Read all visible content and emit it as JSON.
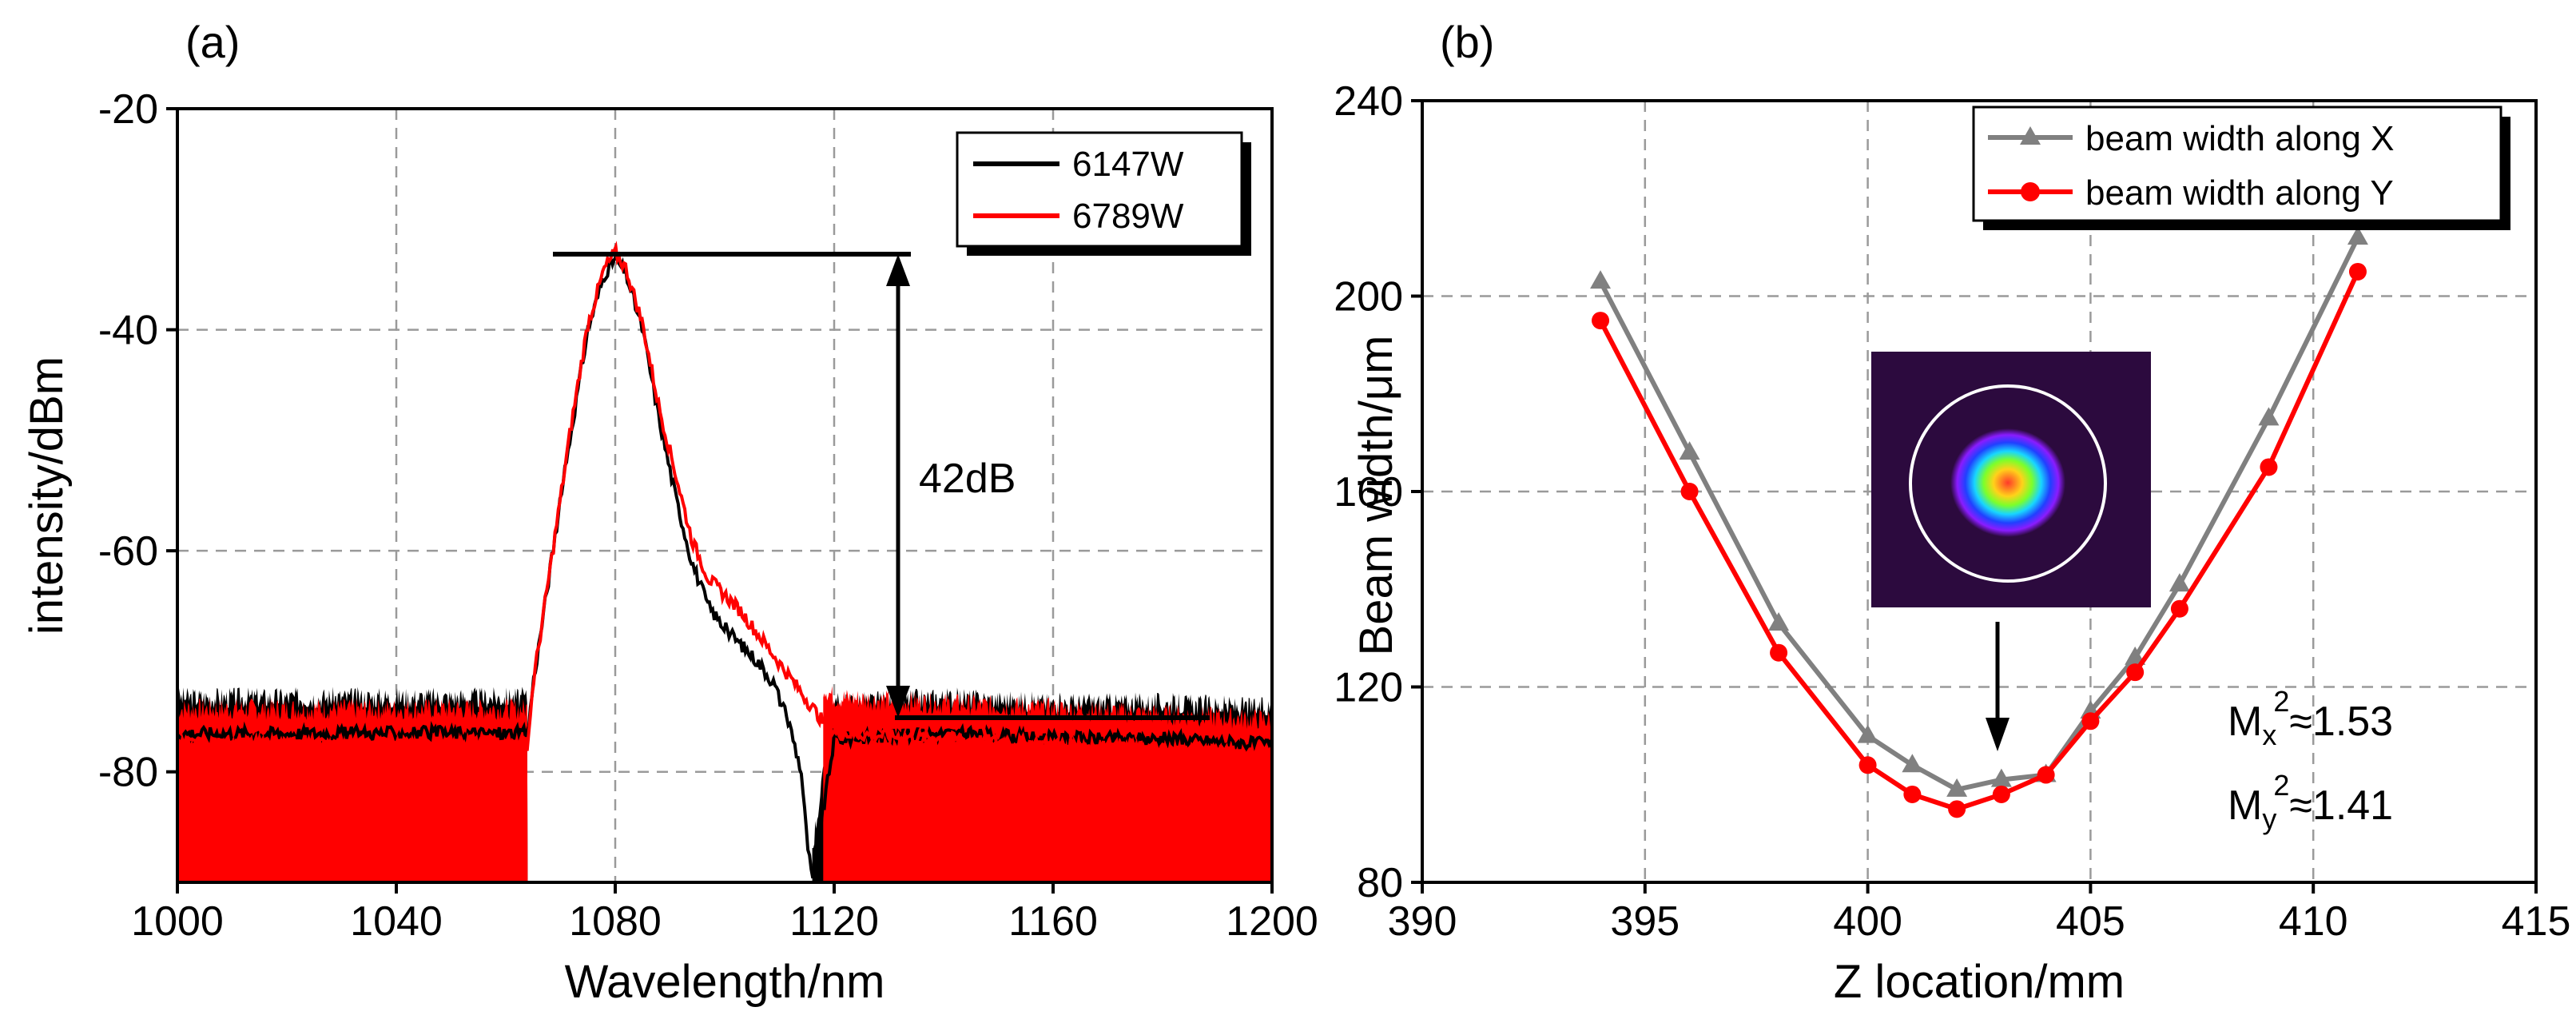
{
  "chart_data": [
    {
      "panel": "(a)",
      "type": "line",
      "xlabel": "Wavelength/nm",
      "ylabel": "intensity/dBm",
      "xlim": [
        1000,
        1200
      ],
      "ylim": [
        -90,
        -20
      ],
      "xticks": [
        "1000",
        "1040",
        "1080",
        "1120",
        "1160",
        "1200"
      ],
      "yticks": [
        "-20",
        "-40",
        "-60",
        "-80"
      ],
      "grid": true,
      "legend_position": "top-right",
      "series": [
        {
          "name": "6147W",
          "color": "#000000",
          "x": [
            1000,
            1064,
            1065,
            1068,
            1072,
            1075,
            1078,
            1080,
            1082,
            1085,
            1088,
            1091,
            1094,
            1097,
            1100,
            1103,
            1106,
            1109,
            1112,
            1114,
            1115,
            1116,
            1120,
            1140,
            1160,
            1180,
            1200
          ],
          "values": [
            -76.5,
            -76.5,
            -72,
            -62,
            -49,
            -40,
            -35,
            -33.5,
            -35,
            -40,
            -48,
            -55,
            -61,
            -65,
            -67,
            -68.5,
            -70,
            -72,
            -76,
            -80,
            -86,
            -90,
            -77,
            -76.5,
            -77,
            -77,
            -77.5
          ]
        },
        {
          "name": "6789W",
          "color": "#ff0000",
          "x": [
            1000,
            1064,
            1065,
            1068,
            1072,
            1075,
            1078,
            1080,
            1082,
            1085,
            1088,
            1091,
            1094,
            1097,
            1100,
            1103,
            1106,
            1109,
            1112,
            1115,
            1118,
            1120,
            1140,
            1160,
            1180,
            1200
          ],
          "values": [
            -77.5,
            -77.5,
            -72,
            -62,
            -48.5,
            -39.5,
            -34.5,
            -33,
            -34.5,
            -39.5,
            -47,
            -53,
            -59,
            -62.5,
            -64,
            -65.5,
            -67.5,
            -69.5,
            -71.5,
            -73.5,
            -75.5,
            -76.5,
            -77,
            -77.5,
            -78,
            -78.5
          ]
        }
      ],
      "annotation": "42dB"
    },
    {
      "panel": "(b)",
      "type": "line",
      "xlabel": "Z location/mm",
      "ylabel": "Beam width/μm",
      "xlim": [
        390,
        415
      ],
      "ylim": [
        80,
        240
      ],
      "xticks": [
        "390",
        "395",
        "400",
        "405",
        "410",
        "415"
      ],
      "yticks": [
        "80",
        "120",
        "160",
        "200",
        "240"
      ],
      "grid": true,
      "legend_position": "top-right",
      "series": [
        {
          "name": "beam width along X",
          "color": "#808080",
          "marker": "triangle",
          "x": [
            394,
            396,
            398,
            400,
            401,
            402,
            403,
            404,
            405,
            406,
            407,
            409,
            411
          ],
          "values": [
            203,
            168,
            133,
            110,
            104,
            99,
            101,
            102,
            115,
            126,
            141,
            175,
            212
          ]
        },
        {
          "name": "beam width along Y",
          "color": "#ff0000",
          "marker": "circle",
          "x": [
            394,
            396,
            398,
            400,
            401,
            402,
            403,
            404,
            405,
            406,
            407,
            409,
            411
          ],
          "values": [
            195,
            160,
            127,
            104,
            98,
            95,
            98,
            102,
            113,
            123,
            136,
            165,
            205
          ]
        }
      ],
      "annotations": [
        {
          "base": "M",
          "sub": "x",
          "sup": "2",
          "text": "≈1.53"
        },
        {
          "base": "M",
          "sub": "y",
          "sup": "2",
          "text": "≈1.41"
        }
      ]
    }
  ]
}
